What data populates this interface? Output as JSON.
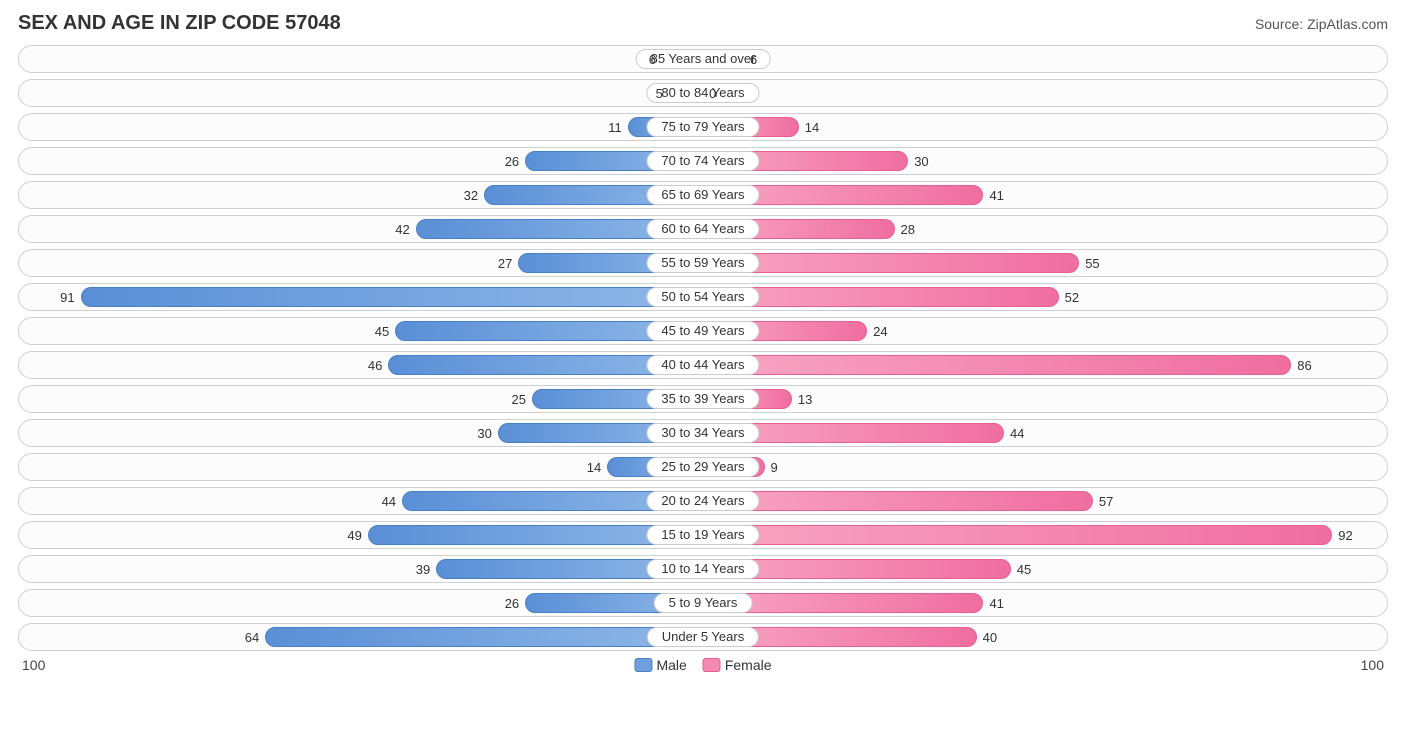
{
  "title": "SEX AND AGE IN ZIP CODE 57048",
  "source": "Source: ZipAtlas.com",
  "chart": {
    "type": "population-pyramid",
    "axis_max": 100,
    "axis_label_left": "100",
    "axis_label_right": "100",
    "male_color": "#6fa0dd",
    "female_color": "#f48ab0",
    "track_border_color": "#d0d0d0",
    "background_color": "#ffffff",
    "label_fontsize": 13,
    "rows": [
      {
        "label": "85 Years and over",
        "male": 6,
        "female": 6
      },
      {
        "label": "80 to 84 Years",
        "male": 5,
        "female": 0
      },
      {
        "label": "75 to 79 Years",
        "male": 11,
        "female": 14
      },
      {
        "label": "70 to 74 Years",
        "male": 26,
        "female": 30
      },
      {
        "label": "65 to 69 Years",
        "male": 32,
        "female": 41
      },
      {
        "label": "60 to 64 Years",
        "male": 42,
        "female": 28
      },
      {
        "label": "55 to 59 Years",
        "male": 27,
        "female": 55
      },
      {
        "label": "50 to 54 Years",
        "male": 91,
        "female": 52
      },
      {
        "label": "45 to 49 Years",
        "male": 45,
        "female": 24
      },
      {
        "label": "40 to 44 Years",
        "male": 46,
        "female": 86
      },
      {
        "label": "35 to 39 Years",
        "male": 25,
        "female": 13
      },
      {
        "label": "30 to 34 Years",
        "male": 30,
        "female": 44
      },
      {
        "label": "25 to 29 Years",
        "male": 14,
        "female": 9
      },
      {
        "label": "20 to 24 Years",
        "male": 44,
        "female": 57
      },
      {
        "label": "15 to 19 Years",
        "male": 49,
        "female": 92
      },
      {
        "label": "10 to 14 Years",
        "male": 39,
        "female": 45
      },
      {
        "label": "5 to 9 Years",
        "male": 26,
        "female": 41
      },
      {
        "label": "Under 5 Years",
        "male": 64,
        "female": 40
      }
    ],
    "legend": {
      "male": "Male",
      "female": "Female"
    }
  }
}
